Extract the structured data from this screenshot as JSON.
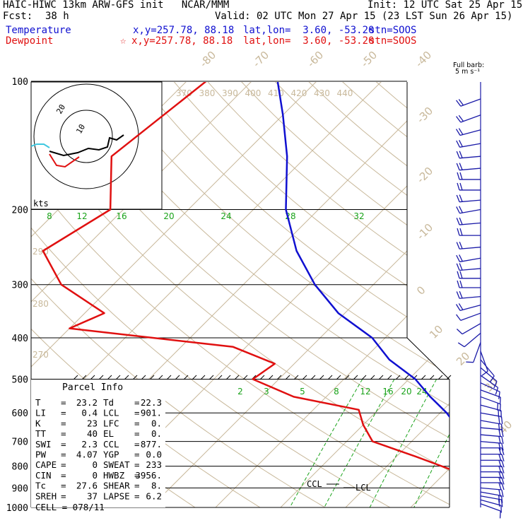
{
  "header": {
    "title_left": "HAIC-HIWC 13km ARW-GFS init   NCAR/MMM",
    "fcst_label": "Fcst:",
    "fcst_value": "38 h",
    "init": "Init: 12 UTC Sat 25 Apr 15",
    "valid": "Valid: 02 UTC Mon 27 Apr 15 (23 LST Sun 26 Apr 15)",
    "temp_line": {
      "label": "Temperature",
      "xy": "x,y=257.78, 88.18",
      "latlon": "lat,lon=  3.60, -53.20",
      "stn": "stn=SOOS"
    },
    "dew_line": {
      "label": "Dewpoint",
      "marker": "☆",
      "xy": "x,y=257.78, 88.18",
      "latlon": "lat,lon=  3.60, -53.20",
      "stn": "stn=SOOS"
    }
  },
  "colors": {
    "temperature": "#1010d0",
    "dewpoint": "#e01010",
    "isotherm": "#c8b89a",
    "mixing_ratio": "#1aa31a",
    "isobar": "#000000",
    "wind_barb": "#1a1aa8",
    "hodo_extra": "#40c8e0"
  },
  "barb_legend": {
    "line1": "Full barb:",
    "line2": "5 m s⁻¹"
  },
  "parcel": {
    "title": "Parcel Info",
    "rows": [
      {
        "l1": "T",
        "v1": "23.2",
        "l2": "Td",
        "v2": "22.3"
      },
      {
        "l1": "LI",
        "v1": "0.4",
        "l2": "LCL",
        "v2": "901."
      },
      {
        "l1": "K",
        "v1": "23",
        "l2": "LFC",
        "v2": "0."
      },
      {
        "l1": "TT",
        "v1": "40",
        "l2": "EL",
        "v2": "0."
      },
      {
        "l1": "SWI",
        "v1": "2.3",
        "l2": "CCL",
        "v2": "877."
      },
      {
        "l1": "PW",
        "v1": "4.07",
        "l2": "YGP",
        "v2": "0.0"
      },
      {
        "l1": "CAPE",
        "v1": "0",
        "l2": "SWEAT",
        "v2": "233"
      },
      {
        "l1": "CIN",
        "v1": "0",
        "l2": "HWBZ",
        "v2": "3956."
      },
      {
        "l1": "Tc",
        "v1": "27.6",
        "l2": "SHEAR",
        "v2": "8."
      },
      {
        "l1": "SREH",
        "v1": "37",
        "l2": "LAPSE",
        "v2": "6.2"
      }
    ],
    "cell": "CELL = 078/11"
  },
  "hodograph": {
    "unit_label": "kts",
    "ring_labels": [
      "20",
      "10"
    ]
  },
  "chart_data": {
    "type": "line",
    "title": "",
    "xlabel": "",
    "ylabel": "",
    "pressure_levels": [
      "100",
      "200",
      "300",
      "400",
      "500",
      "600",
      "700",
      "800",
      "900",
      "1000"
    ],
    "isotherm_labels": [
      "-80",
      "-70",
      "-60",
      "-50",
      "-40",
      "-30",
      "-20",
      "-10",
      "0",
      "10",
      "20",
      "30",
      "40"
    ],
    "theta_labels_top": [
      "370",
      "380",
      "390",
      "400",
      "410",
      "420",
      "430",
      "440"
    ],
    "theta_labels_left": [
      "290",
      "280",
      "270"
    ],
    "mixing_ratio_labels_upper": [
      "8",
      "12",
      "16",
      "20",
      "24",
      "28",
      "32"
    ],
    "mixing_ratio_labels_lower": [
      "2",
      "3",
      "5",
      "8",
      "12",
      "16",
      "20",
      "24"
    ],
    "level_labels": {
      "ccl": "CCL",
      "lcl": "LCL"
    },
    "series": [
      {
        "name": "Temperature",
        "points": [
          [
            100,
            -76
          ],
          [
            120,
            -70
          ],
          [
            150,
            -63
          ],
          [
            200,
            -55
          ],
          [
            250,
            -47
          ],
          [
            300,
            -39
          ],
          [
            350,
            -31
          ],
          [
            400,
            -22
          ],
          [
            450,
            -16
          ],
          [
            500,
            -9
          ],
          [
            550,
            -4
          ],
          [
            600,
            1
          ],
          [
            650,
            5
          ],
          [
            700,
            10
          ],
          [
            750,
            13
          ],
          [
            800,
            16
          ],
          [
            850,
            18
          ],
          [
            900,
            21
          ],
          [
            950,
            22
          ],
          [
            990,
            23.2
          ]
        ]
      },
      {
        "name": "Dewpoint",
        "points": [
          [
            100,
            -87
          ],
          [
            150,
            -90
          ],
          [
            200,
            -82
          ],
          [
            250,
            -86
          ],
          [
            300,
            -78
          ],
          [
            350,
            -67
          ],
          [
            380,
            -70
          ],
          [
            420,
            -42
          ],
          [
            460,
            -33
          ],
          [
            500,
            -34
          ],
          [
            550,
            -25
          ],
          [
            590,
            -13
          ],
          [
            640,
            -10
          ],
          [
            700,
            -6
          ],
          [
            760,
            3
          ],
          [
            820,
            11
          ],
          [
            880,
            17
          ],
          [
            960,
            21
          ],
          [
            990,
            22.3
          ]
        ]
      }
    ],
    "winds": [
      {
        "p": 110,
        "dir": 250,
        "spd": 10
      },
      {
        "p": 120,
        "dir": 250,
        "spd": 12
      },
      {
        "p": 130,
        "dir": 255,
        "spd": 12
      },
      {
        "p": 140,
        "dir": 260,
        "spd": 10
      },
      {
        "p": 150,
        "dir": 265,
        "spd": 10
      },
      {
        "p": 160,
        "dir": 265,
        "spd": 12
      },
      {
        "p": 170,
        "dir": 270,
        "spd": 10
      },
      {
        "p": 180,
        "dir": 270,
        "spd": 12
      },
      {
        "p": 190,
        "dir": 265,
        "spd": 10
      },
      {
        "p": 200,
        "dir": 260,
        "spd": 10
      },
      {
        "p": 215,
        "dir": 265,
        "spd": 10
      },
      {
        "p": 230,
        "dir": 270,
        "spd": 12
      },
      {
        "p": 245,
        "dir": 265,
        "spd": 10
      },
      {
        "p": 260,
        "dir": 260,
        "spd": 10
      },
      {
        "p": 275,
        "dir": 265,
        "spd": 12
      },
      {
        "p": 290,
        "dir": 270,
        "spd": 10
      },
      {
        "p": 305,
        "dir": 270,
        "spd": 10
      },
      {
        "p": 320,
        "dir": 265,
        "spd": 12
      },
      {
        "p": 335,
        "dir": 255,
        "spd": 10
      },
      {
        "p": 350,
        "dir": 250,
        "spd": 8
      },
      {
        "p": 370,
        "dir": 240,
        "spd": 8
      },
      {
        "p": 390,
        "dir": 230,
        "spd": 7
      },
      {
        "p": 410,
        "dir": 200,
        "spd": 6
      },
      {
        "p": 430,
        "dir": 160,
        "spd": 6
      },
      {
        "p": 450,
        "dir": 140,
        "spd": 6
      },
      {
        "p": 470,
        "dir": 130,
        "spd": 6
      },
      {
        "p": 490,
        "dir": 125,
        "spd": 7
      },
      {
        "p": 510,
        "dir": 115,
        "spd": 8
      },
      {
        "p": 530,
        "dir": 110,
        "spd": 8
      },
      {
        "p": 550,
        "dir": 110,
        "spd": 10
      },
      {
        "p": 575,
        "dir": 105,
        "spd": 10
      },
      {
        "p": 600,
        "dir": 100,
        "spd": 10
      },
      {
        "p": 625,
        "dir": 100,
        "spd": 12
      },
      {
        "p": 650,
        "dir": 95,
        "spd": 12
      },
      {
        "p": 675,
        "dir": 95,
        "spd": 12
      },
      {
        "p": 700,
        "dir": 95,
        "spd": 12
      },
      {
        "p": 725,
        "dir": 90,
        "spd": 12
      },
      {
        "p": 750,
        "dir": 90,
        "spd": 12
      },
      {
        "p": 775,
        "dir": 90,
        "spd": 12
      },
      {
        "p": 800,
        "dir": 90,
        "spd": 12
      },
      {
        "p": 825,
        "dir": 90,
        "spd": 12
      },
      {
        "p": 850,
        "dir": 90,
        "spd": 12
      },
      {
        "p": 875,
        "dir": 90,
        "spd": 12
      },
      {
        "p": 900,
        "dir": 95,
        "spd": 12
      },
      {
        "p": 920,
        "dir": 100,
        "spd": 10
      },
      {
        "p": 940,
        "dir": 100,
        "spd": 10
      },
      {
        "p": 960,
        "dir": 105,
        "spd": 8
      },
      {
        "p": 980,
        "dir": 110,
        "spd": 6
      }
    ],
    "grid": true,
    "legend": "top-left"
  }
}
